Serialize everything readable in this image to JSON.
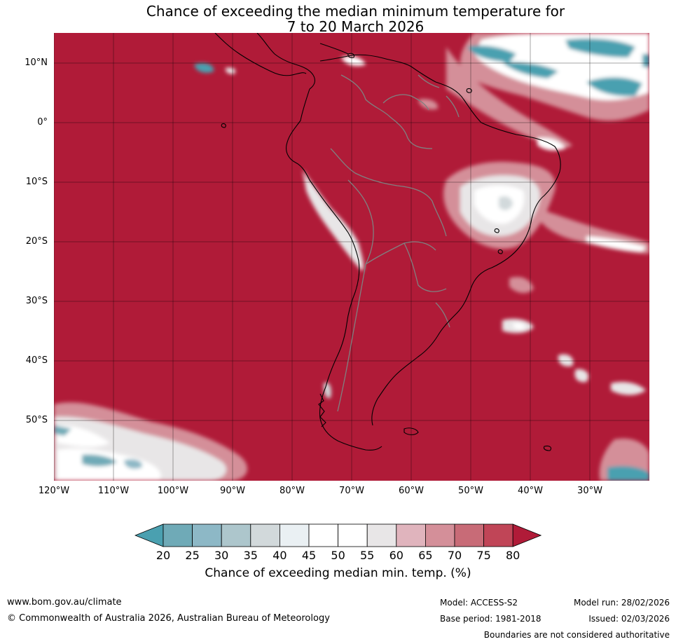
{
  "title_line1": "Chance of exceeding the median minimum temperature for",
  "title_line2": "7 to 20 March 2026",
  "lat_ticks": [
    "10°N",
    "0°",
    "10°S",
    "20°S",
    "30°S",
    "40°S",
    "50°S"
  ],
  "lon_ticks": [
    "120°W",
    "110°W",
    "100°W",
    "90°W",
    "80°W",
    "70°W",
    "60°W",
    "50°W",
    "40°W",
    "30°W"
  ],
  "colorbar": {
    "ticks": [
      "20",
      "25",
      "30",
      "35",
      "40",
      "45",
      "50",
      "55",
      "60",
      "65",
      "70",
      "75",
      "80"
    ],
    "colors": [
      "#4aa0b0",
      "#6faab7",
      "#8db8c6",
      "#adc6cc",
      "#d2d9db",
      "#eaf0f3",
      "#ffffff",
      "#ffffff",
      "#e8e6e7",
      "#e0b4bd",
      "#d48f99",
      "#c86b77",
      "#c04557",
      "#b01b38"
    ],
    "label": "Chance of exceeding median min. temp. (%)"
  },
  "colors": {
    "high": "#b01b38",
    "low": "#4aa0b0",
    "land_outline": "#000000",
    "borders": "#808080"
  },
  "footer": {
    "website": "www.bom.gov.au/climate",
    "copyright": "© Commonwealth of Australia 2026, Australian Bureau of Meteorology",
    "model": "Model: ACCESS-S2",
    "base_period": "Base period: 1981-2018",
    "model_run": "Model run: 28/02/2026",
    "issued": "Issued: 02/03/2026",
    "disclaimer": "Boundaries are not considered authoritative"
  }
}
